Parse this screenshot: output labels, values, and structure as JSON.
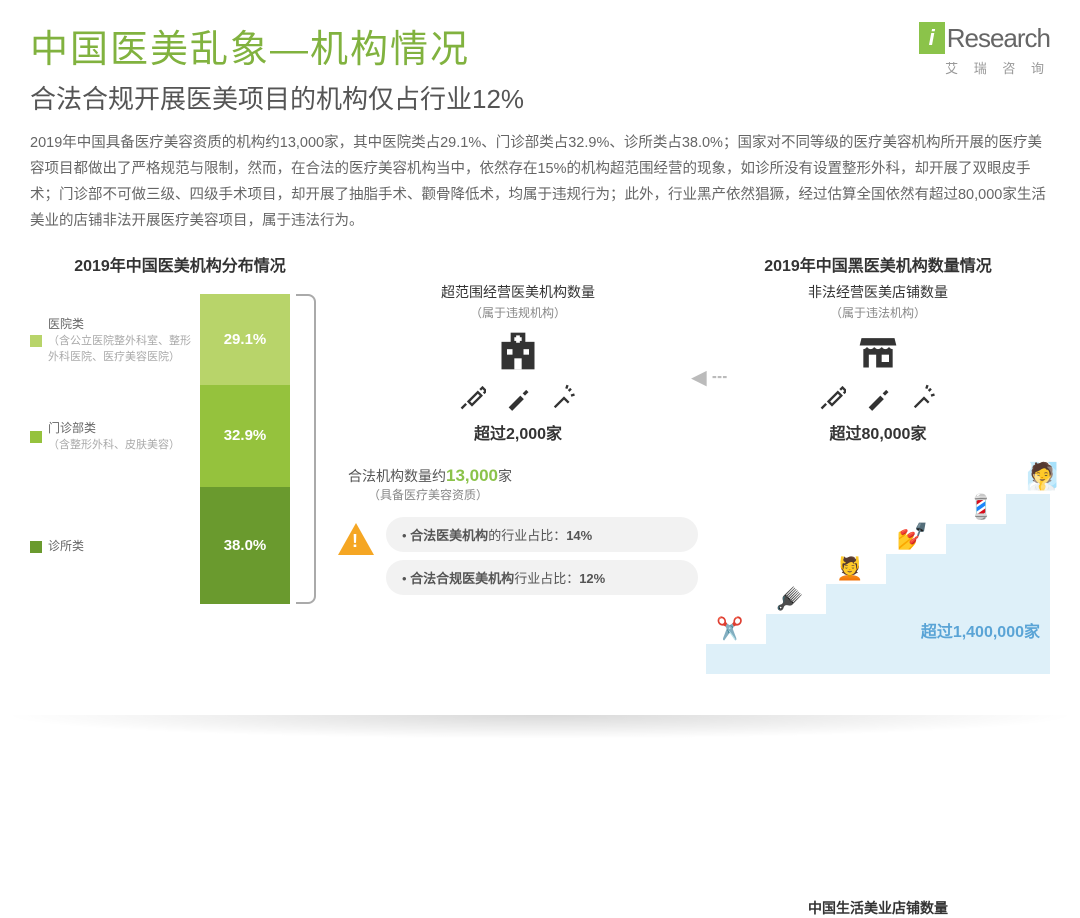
{
  "logo": {
    "brand_i": "i",
    "brand_text": "Research",
    "sub": "艾 瑞 咨 询"
  },
  "title": {
    "main": "中国医美乱象—机构情况",
    "sub": "合法合规开展医美项目的机构仅占行业12%"
  },
  "body_text": "2019年中国具备医疗美容资质的机构约13,000家，其中医院类占29.1%、门诊部类占32.9%、诊所类占38.0%；国家对不同等级的医疗美容机构所开展的医疗美容项目都做出了严格规范与限制，然而，在合法的医疗美容机构当中，依然存在15%的机构超范围经营的现象，如诊所没有设置整形外科，却开展了双眼皮手术；门诊部不可做三级、四级手术项目，却开展了抽脂手术、颧骨降低术，均属于违规行为；此外，行业黑产依然猖獗，经过估算全国依然有超过80,000家生活美业的店铺非法开展医疗美容项目，属于违法行为。",
  "colors": {
    "green_light": "#b8d46a",
    "green_mid": "#95c23d",
    "green_dark": "#6a9a2e",
    "accent": "#8bc34a",
    "grey_text": "#666666",
    "orange": "#f5a623",
    "blue_step": "#def0f9",
    "blue_text": "#5aa4d6"
  },
  "left_chart": {
    "title": "2019年中国医美机构分布情况",
    "segments": [
      {
        "label": "医院类",
        "sublabel": "（含公立医院整外科室、整形外科医院、医疗美容医院）",
        "pct_label": "29.1%",
        "value": 29.1,
        "color": "#b8d46a"
      },
      {
        "label": "门诊部类",
        "sublabel": "（含整形外科、皮肤美容）",
        "pct_label": "32.9%",
        "value": 32.9,
        "color": "#95c23d"
      },
      {
        "label": "诊所类",
        "sublabel": "",
        "pct_label": "38.0%",
        "value": 38.0,
        "color": "#6a9a2e"
      }
    ]
  },
  "mid_block": {
    "over_title": "超范围经营医美机构数量",
    "over_sub": "（属于违规机构）",
    "over_count": "超过2,000家",
    "legal_line_a": "合法机构数量约",
    "legal_num": "13,000",
    "legal_line_b": "家",
    "legal_sub": "（具备医疗美容资质）",
    "bullets": [
      {
        "prefix": "• ",
        "bold": "合法医美机构",
        "rest": "的行业占比：",
        "pct": "14%"
      },
      {
        "prefix": "• ",
        "bold": "合法合规医美机构",
        "rest": "行业占比：",
        "pct": "12%"
      }
    ]
  },
  "right_block": {
    "section_title": "2019年中国黑医美机构数量情况",
    "illegal_title": "非法经营医美店铺数量",
    "illegal_sub": "（属于违法机构）",
    "illegal_count": "超过80,000家",
    "stairs_count": "超过1,400,000家",
    "stairs_title": "中国生活美业店铺数量",
    "stairs_label": ""
  }
}
